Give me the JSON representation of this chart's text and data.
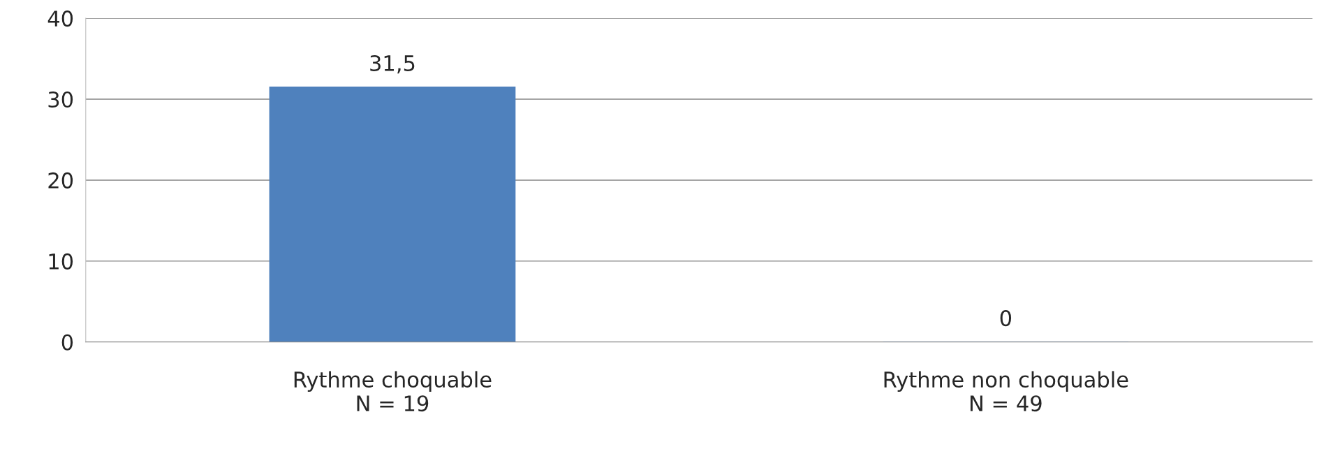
{
  "chart_data": {
    "type": "bar",
    "categories": [
      "Rythme choquable\nN = 19",
      "Rythme non choquable\nN = 49"
    ],
    "values": [
      31.5,
      0
    ],
    "value_labels": [
      "31,5",
      "0"
    ],
    "color": "#4f81bd",
    "ylim": [
      0,
      40
    ],
    "yticks": [
      0,
      10,
      20,
      30,
      40
    ],
    "grid": "y"
  }
}
